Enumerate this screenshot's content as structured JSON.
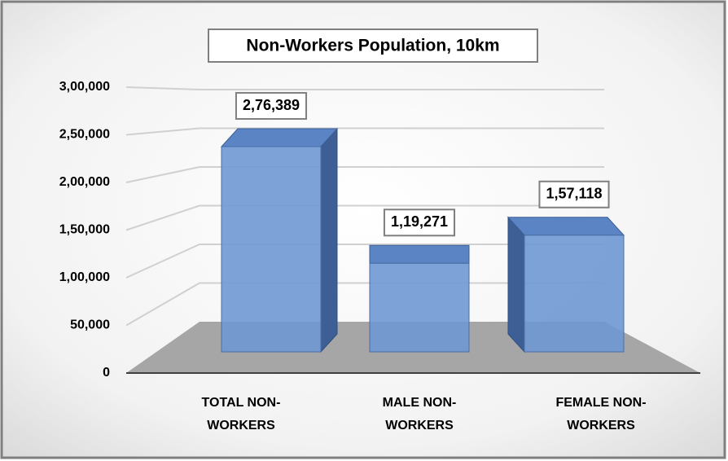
{
  "chart_data": {
    "type": "bar3d",
    "title": "Non-Workers Population, 10km",
    "categories": [
      "TOTAL NON-WORKERS",
      "MALE NON-WORKERS",
      "FEMALE NON-WORKERS"
    ],
    "values": [
      276389,
      119271,
      157118
    ],
    "value_labels": [
      "2,76,389",
      "1,19,271",
      "1,57,118"
    ],
    "color": "#6f98d4",
    "ylim": [
      0,
      300000
    ],
    "yticks": [
      0,
      {
        "value": 50000,
        "label": "50,000"
      },
      {
        "value": 100000,
        "label": "1,00,000"
      },
      {
        "value": 150000,
        "label": "1,50,000"
      },
      {
        "value": 200000,
        "label": "2,00,000"
      },
      {
        "value": 250000,
        "label": "2,50,000"
      },
      {
        "value": 300000,
        "label": "3,00,000"
      }
    ],
    "grid": true
  }
}
